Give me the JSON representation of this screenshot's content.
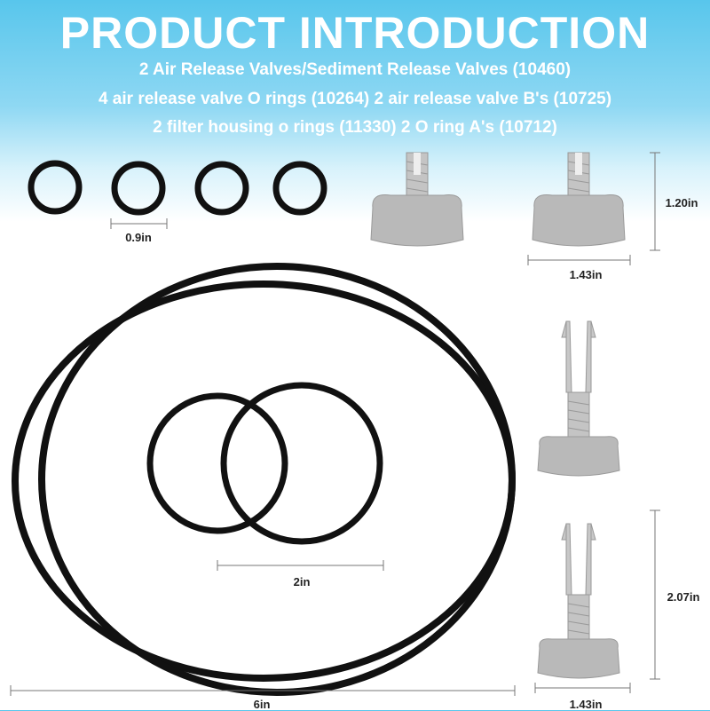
{
  "header": {
    "title": "PRODUCT INTRODUCTION",
    "lines": [
      "2 Air Release Valves/Sediment Release Valves (10460)",
      "4 air release valve O rings (10264)  2 air release valve B's (10725)",
      "2 filter housing o rings (11330) 2 O ring A's (10712)"
    ]
  },
  "dimensions": {
    "small_oring": "0.9in",
    "cap_height": "1.20in",
    "cap_width": "1.43in",
    "medium_oring": "2in",
    "large_oring": "6in",
    "valve_height": "2.07in",
    "valve_width": "1.43in"
  },
  "colors": {
    "header_blue": "#58c6ec",
    "rubber": "#111111",
    "plastic": "#b9b9b9"
  }
}
